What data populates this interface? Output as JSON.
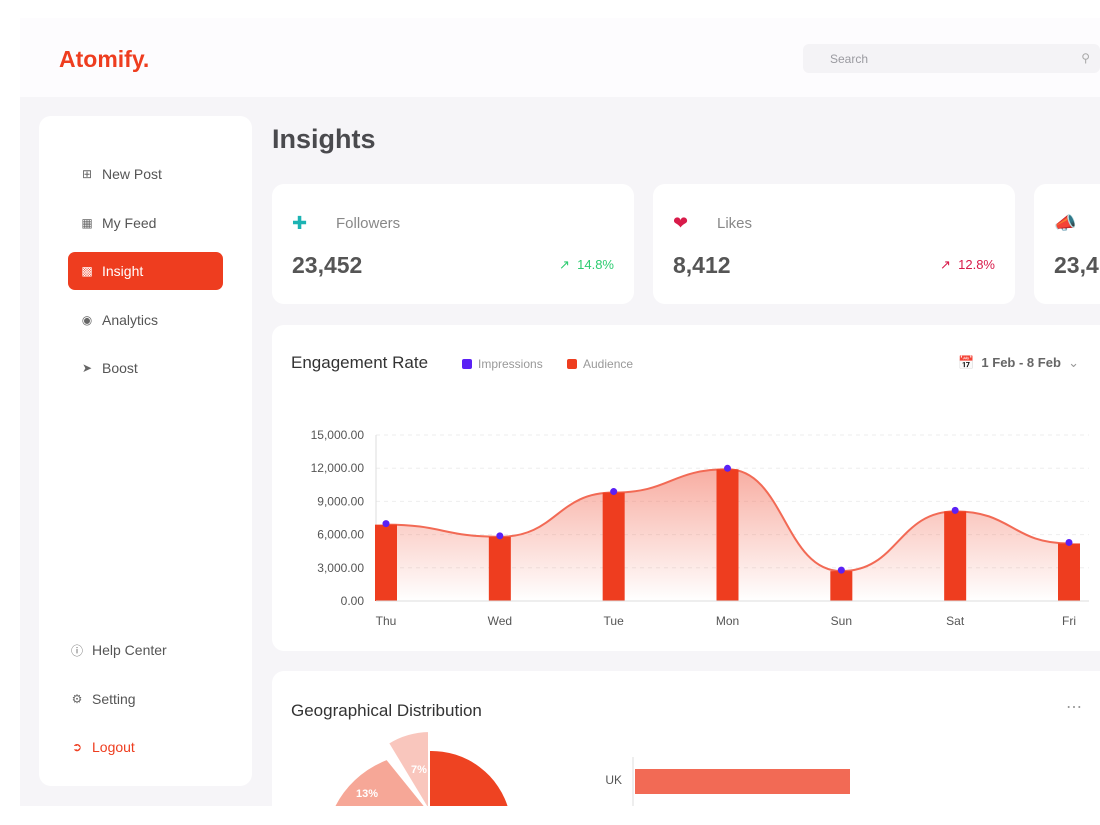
{
  "app": {
    "logo": "Atomify.",
    "search_placeholder": "Search"
  },
  "sidebar": {
    "items": [
      {
        "label": "New Post",
        "icon": "plus-square-icon"
      },
      {
        "label": "My Feed",
        "icon": "grid-icon"
      },
      {
        "label": "Insight",
        "icon": "bar-chart-icon",
        "active": true
      },
      {
        "label": "Analytics",
        "icon": "globe-icon"
      },
      {
        "label": "Boost",
        "icon": "rocket-icon"
      }
    ],
    "bottom": [
      {
        "label": "Help Center",
        "icon": "info-icon"
      },
      {
        "label": "Setting",
        "icon": "gear-icon"
      },
      {
        "label": "Logout",
        "icon": "logout-icon"
      }
    ]
  },
  "page": {
    "title": "Insights"
  },
  "stats": [
    {
      "label": "Followers",
      "value": "23,452",
      "change": "14.8%",
      "color": "#2ecc71",
      "icon_color": "#1bb3b3"
    },
    {
      "label": "Likes",
      "value": "8,412",
      "change": "12.8%",
      "color": "#d81b4a",
      "icon_color": "#d81b4a"
    },
    {
      "label": "",
      "value": "23,4",
      "change": "",
      "color": "#1bb3b3",
      "icon_color": "#1bb3b3"
    }
  ],
  "engagement": {
    "title": "Engagement Rate",
    "date_range": "1 Feb - 8 Feb"
  },
  "chart_data": {
    "type": "bar",
    "title": "Engagement Rate",
    "categories": [
      "Thu",
      "Wed",
      "Tue",
      "Mon",
      "Sun",
      "Sat",
      "Fri"
    ],
    "series": [
      {
        "name": "Impressions",
        "type": "line",
        "color": "#5b21f5",
        "values": [
          6900,
          5800,
          9800,
          11900,
          2700,
          8100,
          5200
        ]
      },
      {
        "name": "Audience",
        "type": "bar",
        "color": "#ee3d1f",
        "values": [
          6900,
          5800,
          9800,
          11900,
          2700,
          8100,
          5200
        ]
      }
    ],
    "yticks": [
      "15,000.00",
      "12,000.00",
      "9,000.00",
      "6,000.00",
      "3,000.00",
      "0.00"
    ],
    "ylim": [
      0,
      15000
    ]
  },
  "geo": {
    "title": "Geographical Distribution",
    "pie_labels": [
      "13%",
      "7%"
    ],
    "bar_labels": [
      "UK"
    ]
  }
}
